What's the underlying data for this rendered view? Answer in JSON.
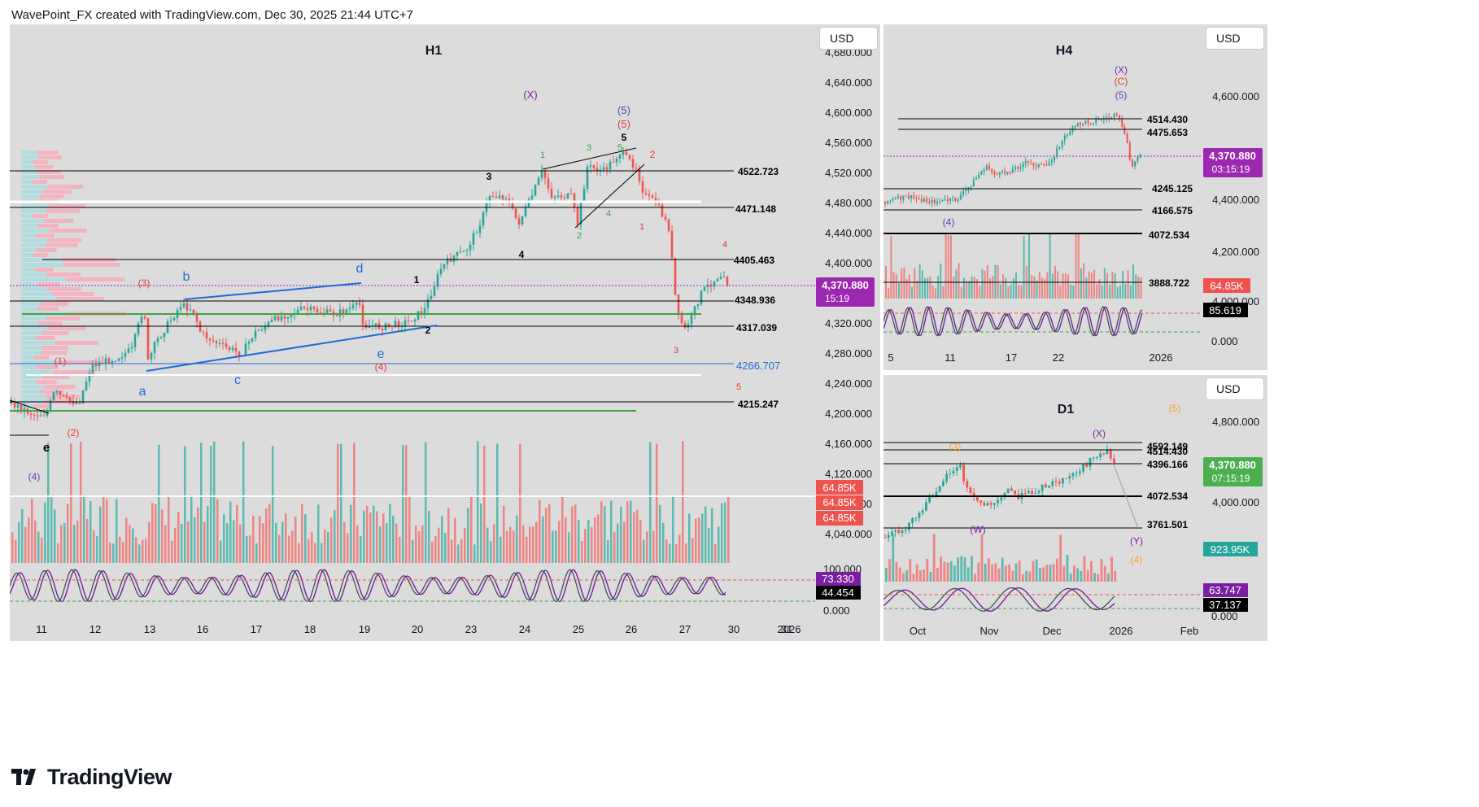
{
  "header": {
    "text": "WavePoint_FX created with TradingView.com, Dec 30, 2025 21:44 UTC+7"
  },
  "footer": {
    "brand": "TradingView"
  },
  "chart_data": [
    {
      "type": "candlestick",
      "title": "H1",
      "currency": "USD",
      "y_ticks": [
        "4,680.000",
        "4,640.000",
        "4,600.000",
        "4,560.000",
        "4,520.000",
        "4,480.000",
        "4,440.000",
        "4,400.000",
        "4,360.000",
        "4,320.000",
        "4,280.000",
        "4,240.000",
        "4,200.000",
        "4,160.000",
        "4,120.000",
        "4,080.000",
        "4,040.000"
      ],
      "x_ticks": [
        "11",
        "12",
        "13",
        "16",
        "17",
        "18",
        "19",
        "20",
        "23",
        "24",
        "25",
        "26",
        "27",
        "30",
        "31",
        "2026"
      ],
      "levels": [
        "4522.723",
        "4471.148",
        "4405.463",
        "4348.936",
        "4317.039",
        "4266.707",
        "4215.247"
      ],
      "price_badge": {
        "price": "4,370.880",
        "countdown": "15:19"
      },
      "volume_badges": [
        "64.85K",
        "64.85K",
        "64.85K"
      ],
      "stoch": {
        "values": [
          "73.330",
          "44.454"
        ],
        "ticks": [
          "100.000",
          "0.000"
        ]
      },
      "wave_labels": {
        "x_paren": "(X)",
        "five_paren": "(5)",
        "five_red_paren": "(5)",
        "five": "5",
        "five_green": "5",
        "two_red": "2",
        "one_green": "1",
        "three_green": "3",
        "two_green": "2",
        "four_green": "4",
        "one_red": "1",
        "three_black": "3",
        "four_black": "4",
        "one_black": "1",
        "two_black": "2",
        "three_red_paren": "(3)",
        "one_red_paren": "(1)",
        "two_red_paren": "(2)",
        "four_red_paren": "(4)",
        "four_purple_paren": "(4)",
        "a": "a",
        "b": "b",
        "c": "c",
        "d": "d",
        "e_blue": "e",
        "e_black": "e",
        "four_red": "4",
        "three_red": "3",
        "five_red": "5"
      }
    },
    {
      "type": "candlestick",
      "title": "H4",
      "currency": "USD",
      "y_ticks": [
        "4,600.000",
        "4,400.000",
        "4,200.000",
        "4,000.000"
      ],
      "x_ticks": [
        "5",
        "11",
        "17",
        "22",
        "2026"
      ],
      "levels": [
        "4514.430",
        "4475.653",
        "4245.125",
        "4166.575",
        "4072.534",
        "3888.722"
      ],
      "price_badge": {
        "price": "4,370.880",
        "countdown": "03:15:19"
      },
      "volume_badges": [
        "64.85K"
      ],
      "stoch": {
        "values": [
          "85.619"
        ],
        "ticks": [
          "0.000"
        ]
      },
      "wave_labels": {
        "x_paren": "(X)",
        "c_paren": "(C)",
        "five_paren": "(5)",
        "four_paren": "(4)"
      }
    },
    {
      "type": "candlestick",
      "title": "D1",
      "currency": "USD",
      "y_ticks": [
        "4,800.000",
        "4,000.000"
      ],
      "x_ticks": [
        "Oct",
        "Nov",
        "Dec",
        "2026",
        "Feb"
      ],
      "levels": [
        "4592.149",
        "4514.430",
        "4396.166",
        "4072.534",
        "3761.501"
      ],
      "price_badge": {
        "price": "4,370.880",
        "countdown": "07:15:19"
      },
      "volume_badges": [
        "923.95K"
      ],
      "stoch": {
        "values": [
          "63.747",
          "37.137"
        ],
        "ticks": [
          "0.000"
        ]
      },
      "wave_labels": {
        "five_paren": "(5)",
        "three_paren": "(3)",
        "x_paren": "(X)",
        "w_paren": "(W)",
        "y_paren": "(Y)",
        "four_paren": "(4)"
      }
    }
  ],
  "colors": {
    "up": "#26a69a",
    "down": "#ef5350",
    "wave_red": "#e53935",
    "wave_green": "#43a047",
    "wave_blue": "#1e6bd6",
    "wave_purple": "#7b1fa2",
    "badge_purple": "#9c27b0",
    "panel_bg": "#dcdcdc"
  }
}
